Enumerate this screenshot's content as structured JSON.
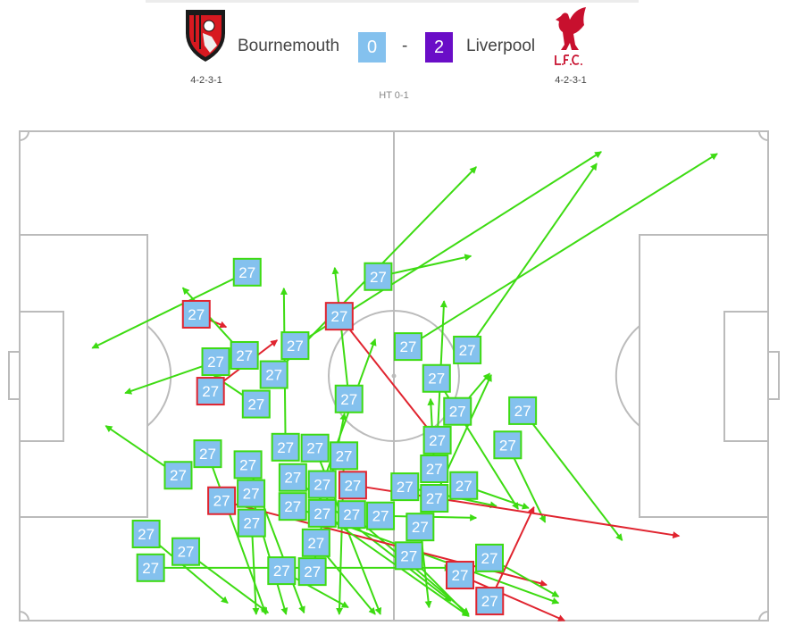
{
  "match": {
    "home_team": "Bournemouth",
    "away_team": "Liverpool",
    "home_score": "0",
    "separator": "-",
    "away_score": "2",
    "home_formation": "4-2-3-1",
    "away_formation": "4-2-3-1",
    "half_time": "HT 0-1",
    "home_logo_text": "AFC BOURNEMOUTH",
    "away_logo_text": "L.F.C.",
    "colors": {
      "home_score_bg": "#84c1ee",
      "away_score_bg": "#6a0dc7",
      "home_logo": "#d71920",
      "away_logo": "#c8102e"
    }
  },
  "chart_data": {
    "type": "pass-map",
    "pitch_units": {
      "x": [
        0,
        100
      ],
      "y": [
        0,
        100
      ]
    },
    "player_number": "27",
    "colors": {
      "complete": "#3ddb12",
      "incomplete": "#e0242f",
      "marker_fill": "#84c1ee",
      "pitch_lines": "#bbbbbb"
    },
    "passes": [
      {
        "from": [
          30.4,
          28.8
        ],
        "to": [
          9.7,
          44.3
        ],
        "outcome": "complete"
      },
      {
        "from": [
          47.9,
          29.7
        ],
        "to": [
          60.3,
          25.5
        ],
        "outcome": "complete"
      },
      {
        "from": [
          23.6,
          37.4
        ],
        "to": [
          27.6,
          40.0
        ],
        "outcome": "incomplete"
      },
      {
        "from": [
          42.7,
          37.8
        ],
        "to": [
          55.5,
          62.6
        ],
        "outcome": "incomplete"
      },
      {
        "from": [
          51.9,
          44.0
        ],
        "to": [
          93.2,
          4.6
        ],
        "outcome": "complete"
      },
      {
        "from": [
          59.8,
          44.7
        ],
        "to": [
          77.1,
          6.6
        ],
        "outcome": "complete"
      },
      {
        "from": [
          36.8,
          44.0
        ],
        "to": [
          77.7,
          4.2
        ],
        "outcome": "complete"
      },
      {
        "from": [
          30.3,
          45.8
        ],
        "to": [
          21.8,
          32.0
        ],
        "outcome": "complete"
      },
      {
        "from": [
          26.4,
          48.2
        ],
        "to": [
          14.1,
          53.5
        ],
        "outcome": "complete"
      },
      {
        "from": [
          33.5,
          50.0
        ],
        "to": [
          61.0,
          7.3
        ],
        "outcome": "complete"
      },
      {
        "from": [
          25.5,
          52.0
        ],
        "to": [
          34.4,
          42.7
        ],
        "outcome": "incomplete"
      },
      {
        "from": [
          55.7,
          50.5
        ],
        "to": [
          66.6,
          77.2
        ],
        "outcome": "complete"
      },
      {
        "from": [
          31.6,
          55.3
        ],
        "to": [
          26.0,
          50.0
        ],
        "outcome": "complete"
      },
      {
        "from": [
          44.0,
          54.7
        ],
        "to": [
          42.1,
          27.9
        ],
        "outcome": "complete"
      },
      {
        "from": [
          67.2,
          57.1
        ],
        "to": [
          80.5,
          83.6
        ],
        "outcome": "complete"
      },
      {
        "from": [
          58.5,
          60.4
        ],
        "to": [
          62.8,
          49.5
        ],
        "outcome": "complete"
      },
      {
        "from": [
          65.2,
          64.1
        ],
        "to": [
          70.2,
          79.9
        ],
        "outcome": "complete"
      },
      {
        "from": [
          24.7,
          65.9
        ],
        "to": [
          32.9,
          98.7
        ],
        "outcome": "complete"
      },
      {
        "from": [
          21.6,
          70.3
        ],
        "to": [
          11.5,
          60.2
        ],
        "outcome": "complete"
      },
      {
        "from": [
          30.5,
          69.5
        ],
        "to": [
          38.0,
          98.4
        ],
        "outcome": "complete"
      },
      {
        "from": [
          37.6,
          65.9
        ],
        "to": [
          35.3,
          32.1
        ],
        "outcome": "complete"
      },
      {
        "from": [
          38.1,
          66.6
        ],
        "to": [
          48.2,
          98.7
        ],
        "outcome": "complete"
      },
      {
        "from": [
          42.6,
          67.5
        ],
        "to": [
          42.7,
          98.7
        ],
        "outcome": "complete"
      },
      {
        "from": [
          36.5,
          70.6
        ],
        "to": [
          57.6,
          96.0
        ],
        "outcome": "complete"
      },
      {
        "from": [
          55.8,
          65.9
        ],
        "to": [
          56.7,
          34.7
        ],
        "outcome": "complete"
      },
      {
        "from": [
          55.1,
          70.1
        ],
        "to": [
          54.9,
          54.7
        ],
        "outcome": "complete"
      },
      {
        "from": [
          58.4,
          72.4
        ],
        "to": [
          68.0,
          77.0
        ],
        "outcome": "complete"
      },
      {
        "from": [
          52.5,
          73.7
        ],
        "to": [
          63.7,
          76.6
        ],
        "outcome": "complete"
      },
      {
        "from": [
          55.6,
          73.7
        ],
        "to": [
          63.0,
          49.8
        ],
        "outcome": "complete"
      },
      {
        "from": [
          44.5,
          72.6
        ],
        "to": [
          88.1,
          82.7
        ],
        "outcome": "incomplete"
      },
      {
        "from": [
          44.7,
          77.2
        ],
        "to": [
          60.0,
          98.7
        ],
        "outcome": "complete"
      },
      {
        "from": [
          37.5,
          73.9
        ],
        "to": [
          72.0,
          96.4
        ],
        "outcome": "complete"
      },
      {
        "from": [
          27.6,
          75.5
        ],
        "to": [
          70.4,
          92.7
        ],
        "outcome": "incomplete"
      },
      {
        "from": [
          30.3,
          75.5
        ],
        "to": [
          35.6,
          98.7
        ],
        "outcome": "complete"
      },
      {
        "from": [
          31.0,
          77.2
        ],
        "to": [
          31.6,
          98.7
        ],
        "outcome": "complete"
      },
      {
        "from": [
          39.4,
          76.5
        ],
        "to": [
          47.5,
          42.5
        ],
        "outcome": "complete"
      },
      {
        "from": [
          46.1,
          78.6
        ],
        "to": [
          61.0,
          79.0
        ],
        "outcome": "complete"
      },
      {
        "from": [
          52.0,
          82.7
        ],
        "to": [
          60.0,
          99.1
        ],
        "outcome": "complete"
      },
      {
        "from": [
          39.7,
          81.4
        ],
        "to": [
          47.5,
          98.7
        ],
        "outcome": "complete"
      },
      {
        "from": [
          16.9,
          82.3
        ],
        "to": [
          27.8,
          96.4
        ],
        "outcome": "complete"
      },
      {
        "from": [
          22.2,
          85.9
        ],
        "to": [
          33.2,
          98.4
        ],
        "outcome": "complete"
      },
      {
        "from": [
          17.5,
          89.2
        ],
        "to": [
          57.6,
          89.2
        ],
        "outcome": "complete"
      },
      {
        "from": [
          35.0,
          89.8
        ],
        "to": [
          43.9,
          97.3
        ],
        "outcome": "complete"
      },
      {
        "from": [
          39.1,
          88.1
        ],
        "to": [
          43.4,
          57.7
        ],
        "outcome": "complete"
      },
      {
        "from": [
          62.4,
          87.2
        ],
        "to": [
          72.0,
          95.1
        ],
        "outcome": "complete"
      },
      {
        "from": [
          59.2,
          90.7
        ],
        "to": [
          72.8,
          100
        ],
        "outcome": "incomplete"
      },
      {
        "from": [
          62.8,
          96.0
        ],
        "to": [
          68.7,
          76.8
        ],
        "outcome": "incomplete"
      },
      {
        "from": [
          42.1,
          77.7
        ],
        "to": [
          60.0,
          99.1
        ],
        "outcome": "complete"
      },
      {
        "from": [
          53.5,
          78.1
        ],
        "to": [
          54.7,
          97.3
        ],
        "outcome": "complete"
      }
    ]
  }
}
